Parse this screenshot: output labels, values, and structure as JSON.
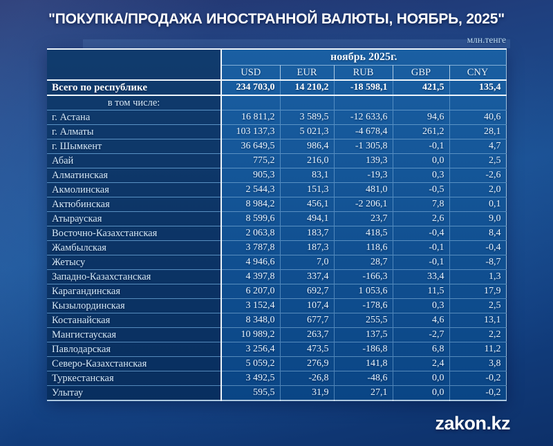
{
  "title": "\"ПОКУПКА/ПРОДАЖА ИНОСТРАННОЙ ВАЛЮТЫ, НОЯБРЬ, 2025\"",
  "unit_label": "млн.тенге",
  "watermark": "zakon.kz",
  "table": {
    "period_header": "ноябрь 2025г.",
    "total_label": "Всего по республике",
    "subheader": "в том числе:"
  },
  "chart_data": {
    "type": "table",
    "title": "ПОКУПКА/ПРОДАЖА ИНОСТРАННОЙ ВАЛЮТЫ, НОЯБРЬ, 2025",
    "unit": "млн.тенге",
    "period": "ноябрь 2025г.",
    "columns": [
      "USD",
      "EUR",
      "RUB",
      "GBP",
      "CNY"
    ],
    "total": {
      "region": "Всего по республике",
      "values": [
        234703.0,
        14210.2,
        -18598.1,
        421.5,
        135.4
      ]
    },
    "rows": [
      {
        "region": "г. Астана",
        "values": [
          16811.2,
          3589.5,
          -12633.6,
          94.6,
          40.6
        ]
      },
      {
        "region": "г. Алматы",
        "values": [
          103137.3,
          5021.3,
          -4678.4,
          261.2,
          28.1
        ]
      },
      {
        "region": "г. Шымкент",
        "values": [
          36649.5,
          986.4,
          -1305.8,
          -0.1,
          4.7
        ]
      },
      {
        "region": "Абай",
        "values": [
          775.2,
          216.0,
          139.3,
          0.0,
          2.5
        ]
      },
      {
        "region": "Алматинская",
        "values": [
          905.3,
          83.1,
          -19.3,
          0.3,
          -2.6
        ]
      },
      {
        "region": "Акмолинская",
        "values": [
          2544.3,
          151.3,
          481.0,
          -0.5,
          2.0
        ]
      },
      {
        "region": "Актюбинская",
        "values": [
          8984.2,
          456.1,
          -2206.1,
          7.8,
          0.1
        ]
      },
      {
        "region": "Атырауская",
        "values": [
          8599.6,
          494.1,
          23.7,
          2.6,
          9.0
        ]
      },
      {
        "region": "Восточно-Казахстанская",
        "values": [
          2063.8,
          183.7,
          418.5,
          -0.4,
          8.4
        ]
      },
      {
        "region": "Жамбылская",
        "values": [
          3787.8,
          187.3,
          118.6,
          -0.1,
          -0.4
        ]
      },
      {
        "region": "Жетысу",
        "values": [
          4946.6,
          7.0,
          28.7,
          -0.1,
          -8.7
        ]
      },
      {
        "region": "Западно-Казахстанская",
        "values": [
          4397.8,
          337.4,
          -166.3,
          33.4,
          1.3
        ]
      },
      {
        "region": "Карагандинская",
        "values": [
          6207.0,
          692.7,
          1053.6,
          11.5,
          17.9
        ]
      },
      {
        "region": "Кызылординская",
        "values": [
          3152.4,
          107.4,
          -178.6,
          0.3,
          2.5
        ]
      },
      {
        "region": "Костанайская",
        "values": [
          8348.0,
          677.7,
          255.5,
          4.6,
          13.1
        ]
      },
      {
        "region": "Мангистауская",
        "values": [
          10989.2,
          263.7,
          137.5,
          -2.7,
          2.2
        ]
      },
      {
        "region": "Павлодарская",
        "values": [
          3256.4,
          473.5,
          -186.8,
          6.8,
          11.2
        ]
      },
      {
        "region": "Северо-Казахстанская",
        "values": [
          5059.2,
          276.9,
          141.8,
          2.4,
          3.8
        ]
      },
      {
        "region": "Туркестанская",
        "values": [
          3492.5,
          -26.8,
          -48.6,
          0.0,
          -0.2
        ]
      },
      {
        "region": "Улытау",
        "values": [
          595.5,
          31.9,
          27.1,
          0.0,
          -0.2
        ]
      }
    ]
  },
  "colors": {
    "background_top": "#252e66",
    "background_mid": "#1a5093",
    "background_bottom": "#0d3069",
    "table_data_blue": "#11589b",
    "label_column_navy": "#0e3a6d",
    "grid_line": "#8fbede",
    "strong_border": "#eef5fb",
    "unit_text": "#bcdcf4",
    "title_text": "#ffffff"
  }
}
